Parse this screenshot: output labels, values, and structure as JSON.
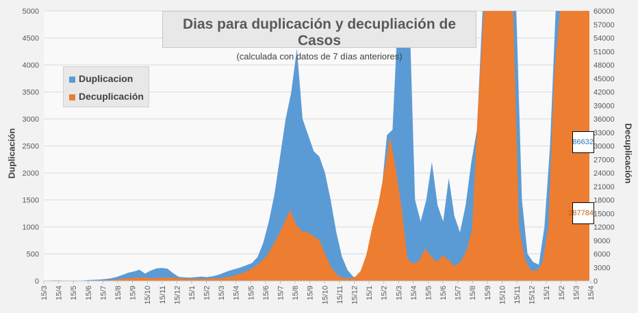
{
  "chart_data": {
    "type": "area",
    "title": "Dias para duplicación y decupliación de Casos",
    "subtitle": "(calculada con datos de 7 días anteriores)",
    "ylabel_left": "Duplicación",
    "ylabel_right": "Decuplicación",
    "ylim_left": [
      0,
      5000
    ],
    "ylim_right": [
      0,
      60000
    ],
    "yticks_left": [
      "0",
      "500",
      "1000",
      "1500",
      "2000",
      "2500",
      "3000",
      "3500",
      "4000",
      "4500",
      "5000"
    ],
    "yticks_right": [
      "0",
      "3000",
      "6000",
      "9000",
      "12000",
      "15000",
      "18000",
      "21000",
      "24000",
      "27000",
      "30000",
      "33000",
      "36000",
      "39000",
      "42000",
      "45000",
      "48000",
      "51000",
      "54000",
      "57000",
      "60000"
    ],
    "x_tick_labels": [
      "15/3",
      "15/4",
      "15/5",
      "15/6",
      "15/7",
      "15/8",
      "15/9",
      "15/10",
      "15/11",
      "15/12",
      "15/1",
      "15/2",
      "15/3",
      "15/4",
      "15/5",
      "15/6",
      "15/7",
      "15/8",
      "15/9",
      "15/10",
      "15/11",
      "15/12",
      "15/1",
      "15/2",
      "15/3",
      "15/4",
      "15/5",
      "15/6",
      "15/7",
      "15/8",
      "15/9",
      "15/10",
      "15/11",
      "15/12",
      "15/1",
      "15/2",
      "15/3",
      "15/4"
    ],
    "grid": true,
    "legend_position": "top-left",
    "series": [
      {
        "name": "Duplicacion",
        "axis": "left",
        "color": "#5b9bd5",
        "values": [
          2,
          5,
          10,
          8,
          5,
          4,
          5,
          8,
          15,
          20,
          25,
          35,
          50,
          75,
          110,
          150,
          175,
          205,
          135,
          190,
          230,
          240,
          225,
          140,
          75,
          65,
          60,
          70,
          80,
          70,
          85,
          110,
          150,
          190,
          220,
          250,
          290,
          330,
          440,
          700,
          1100,
          1600,
          2300,
          3000,
          3500,
          4300,
          3000,
          2700,
          2400,
          2300,
          2000,
          1500,
          900,
          450,
          200,
          80,
          50,
          100,
          400,
          900,
          1600,
          2700,
          2800,
          5000,
          5000,
          5000,
          1500,
          1100,
          1500,
          2200,
          1400,
          1100,
          1900,
          1200,
          900,
          1400,
          2200,
          2800,
          5000,
          5000,
          5000,
          5000,
          5000,
          5000,
          5000,
          1500,
          500,
          350,
          300,
          1000,
          2500,
          5000,
          5000,
          5000,
          5000,
          5000,
          5000,
          5000
        ]
      },
      {
        "name": "Decuplicación",
        "axis": "right",
        "color": "#ed7d31",
        "values": [
          5,
          10,
          15,
          20,
          25,
          20,
          30,
          40,
          60,
          80,
          100,
          150,
          250,
          400,
          550,
          650,
          700,
          760,
          600,
          650,
          700,
          720,
          700,
          600,
          500,
          450,
          400,
          450,
          500,
          550,
          600,
          800,
          1000,
          1400,
          1800,
          2400,
          3200,
          4200,
          5600,
          7800,
          10200,
          13000,
          15800,
          12500,
          11000,
          10800,
          10000,
          9000,
          5800,
          3000,
          1300,
          600,
          500,
          800,
          2200,
          5800,
          12000,
          17000,
          24000,
          32000,
          25000,
          16000,
          4800,
          3800,
          4500,
          7200,
          5500,
          4200,
          5700,
          4600,
          3300,
          4200,
          6500,
          11500,
          38000,
          60000,
          60000,
          60000,
          60000,
          60000,
          60000,
          12000,
          4800,
          2400,
          2200,
          4000,
          12000,
          46000,
          60000,
          60000,
          60000,
          60000,
          60000,
          60000
        ]
      }
    ],
    "markers": [
      {
        "label": "86632",
        "series": "Duplicacion"
      },
      {
        "label": "287784",
        "series": "Decuplicación"
      }
    ]
  }
}
